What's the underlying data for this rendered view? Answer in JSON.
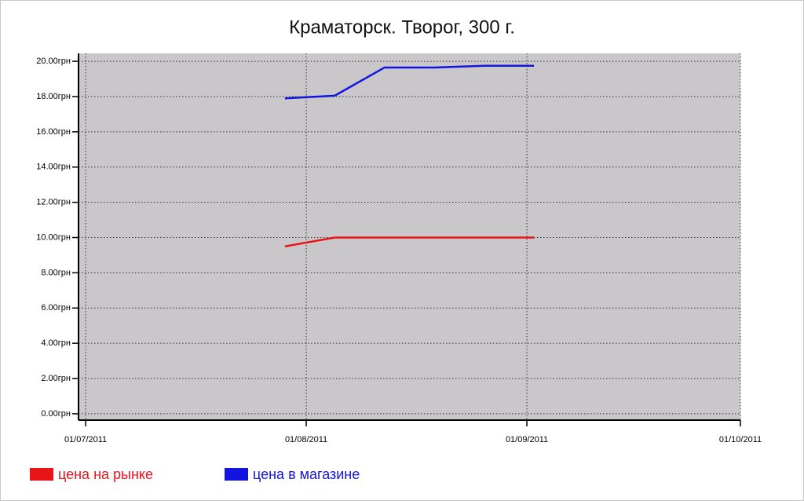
{
  "chart_data": {
    "type": "line",
    "title": "Краматорск. Творог, 300 г.",
    "x": [
      "2011-07-29",
      "2011-08-05",
      "2011-08-12",
      "2011-08-19",
      "2011-08-26",
      "2011-09-02"
    ],
    "series": [
      {
        "name": "цена на рынке",
        "color": "#e8141a",
        "values": [
          9.5,
          10,
          10,
          10,
          10,
          10
        ]
      },
      {
        "name": "цена в магазине",
        "color": "#1414e0",
        "values": [
          17.9,
          18.05,
          19.65,
          19.65,
          19.75,
          19.75
        ]
      }
    ],
    "xlim": [
      "2011-06-30",
      "2011-10-01"
    ],
    "xticks": [
      {
        "value": "2011-07-01",
        "label": "01/07/2011"
      },
      {
        "value": "2011-08-01",
        "label": "01/08/2011"
      },
      {
        "value": "2011-09-01",
        "label": "01/09/2011"
      },
      {
        "value": "2011-10-01",
        "label": "01/10/2011"
      }
    ],
    "ylim": [
      -0.36,
      20.45
    ],
    "yticks": [
      {
        "value": 0,
        "label": "0.00грн"
      },
      {
        "value": 2,
        "label": "2.00грн"
      },
      {
        "value": 4,
        "label": "4.00грн"
      },
      {
        "value": 6,
        "label": "6.00грн"
      },
      {
        "value": 8,
        "label": "8.00грн"
      },
      {
        "value": 10,
        "label": "10.00грн"
      },
      {
        "value": 12,
        "label": "12.00грн"
      },
      {
        "value": 14,
        "label": "14.00грн"
      },
      {
        "value": 16,
        "label": "16.00грн"
      },
      {
        "value": 18,
        "label": "18.00грн"
      },
      {
        "value": 20,
        "label": "20.00грн"
      }
    ],
    "grid": true,
    "legend": "bottom-left",
    "background": "#c9c7ca"
  }
}
